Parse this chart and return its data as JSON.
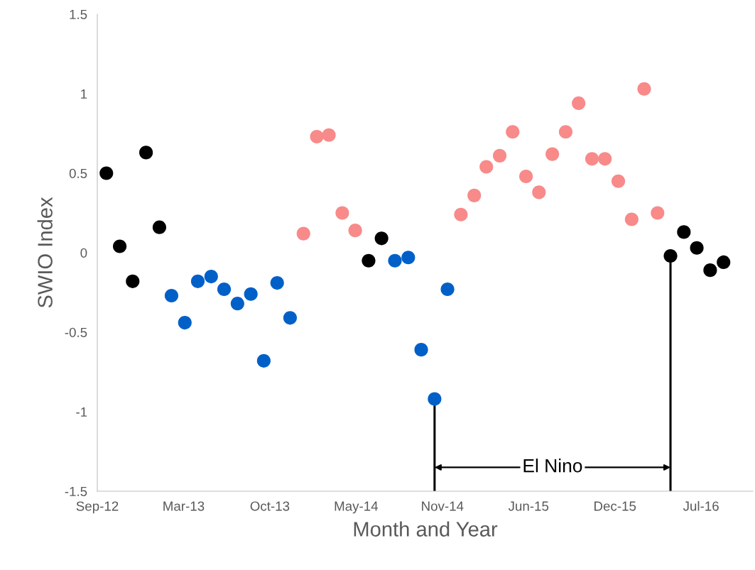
{
  "chart_data": {
    "type": "scatter",
    "xlabel": "Month and Year",
    "ylabel": "SWIO Index",
    "xlim": [
      "2012-09-09",
      "2016-11-07"
    ],
    "ylim": [
      -1.5,
      1.5
    ],
    "xticks": [
      {
        "value": "2012-09-09",
        "label": "Sep-12"
      },
      {
        "value": "2013-03-28",
        "label": "Mar-13"
      },
      {
        "value": "2013-10-14",
        "label": "Oct-13"
      },
      {
        "value": "2014-05-02",
        "label": "May-14"
      },
      {
        "value": "2014-11-18",
        "label": "Nov-14"
      },
      {
        "value": "2015-06-06",
        "label": "Jun-15"
      },
      {
        "value": "2015-12-23",
        "label": "Dec-15"
      },
      {
        "value": "2016-07-10",
        "label": "Jul-16"
      }
    ],
    "yticks": [
      {
        "value": -1.5,
        "label": "-1.5"
      },
      {
        "value": -1,
        "label": "-1"
      },
      {
        "value": -0.5,
        "label": "-0.5"
      },
      0,
      0.5,
      1,
      1.5
    ],
    "grid": false,
    "legend": false,
    "marker": "circle",
    "series": [
      {
        "color": "#000000",
        "x": [
          "2012-09-30",
          "2012-10-31",
          "2012-11-30",
          "2012-12-31",
          "2013-01-31",
          "2014-05-31",
          "2014-06-30",
          "2016-04-30",
          "2016-05-31",
          "2016-06-30",
          "2016-07-31",
          "2016-08-31"
        ],
        "values": [
          0.5,
          0.04,
          -0.18,
          0.63,
          0.16,
          -0.05,
          0.09,
          -0.02,
          0.13,
          0.03,
          -0.11,
          -0.06
        ]
      },
      {
        "color": "#0060c8",
        "x": [
          "2013-02-28",
          "2013-03-31",
          "2013-04-30",
          "2013-05-31",
          "2013-06-30",
          "2013-07-31",
          "2013-08-31",
          "2013-09-30",
          "2013-10-31",
          "2013-11-30",
          "2014-07-31",
          "2014-08-31",
          "2014-09-30",
          "2014-10-31",
          "2014-11-30"
        ],
        "values": [
          -0.27,
          -0.44,
          -0.18,
          -0.15,
          -0.23,
          -0.32,
          -0.26,
          -0.68,
          -0.19,
          -0.41,
          -0.05,
          -0.03,
          -0.61,
          -0.92,
          -0.23
        ]
      },
      {
        "color": "#f88a8a",
        "x": [
          "2013-12-31",
          "2014-01-31",
          "2014-02-28",
          "2014-03-31",
          "2014-04-30",
          "2014-12-31",
          "2015-01-31",
          "2015-02-28",
          "2015-03-31",
          "2015-04-30",
          "2015-05-31",
          "2015-06-30",
          "2015-07-31",
          "2015-08-31",
          "2015-09-30",
          "2015-10-31",
          "2015-11-30",
          "2015-12-31",
          "2016-01-31",
          "2016-02-29",
          "2016-03-31"
        ],
        "values": [
          0.12,
          0.73,
          0.74,
          0.25,
          0.14,
          0.24,
          0.36,
          0.54,
          0.61,
          0.76,
          0.48,
          0.38,
          0.62,
          0.76,
          0.94,
          0.59,
          0.59,
          0.45,
          0.21,
          1.03,
          0.25
        ]
      }
    ],
    "ref_lines": [
      {
        "axis": "x",
        "value": "2014-10-31",
        "color": "#000000"
      },
      {
        "axis": "x",
        "value": "2016-04-30",
        "color": "#000000"
      }
    ],
    "annotations": [
      "El Nino"
    ]
  }
}
